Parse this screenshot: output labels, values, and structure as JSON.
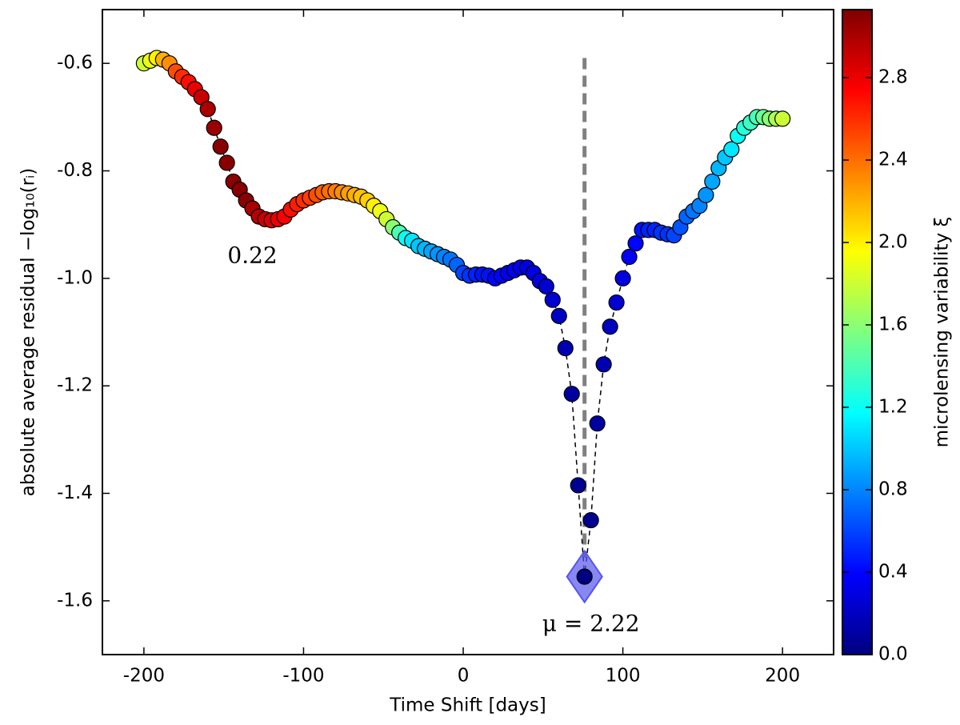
{
  "chart_data": {
    "type": "scatter",
    "xlabel": "Time Shift [days]",
    "ylabel": "absolute average residual −log₁₀(rᵢ)",
    "colorbar_label": "microlensing variability ξ",
    "colormap": "jet",
    "annotations": [
      {
        "text": "0.22",
        "x": -132,
        "y": -0.96
      },
      {
        "text": "μ = 2.22",
        "x": 80,
        "y": -1.645
      }
    ],
    "vline": {
      "x": 76,
      "ymin": -1.52,
      "ymax": -0.59,
      "color": "#808080"
    },
    "highlight": {
      "x": 76,
      "y": -1.555,
      "color": "#5555ee"
    },
    "xlim": [
      -226,
      232
    ],
    "ylim": [
      -1.7,
      -0.5
    ],
    "xticks": [
      -200,
      -100,
      0,
      100,
      200
    ],
    "yticks": [
      -0.6,
      -0.8,
      {
        "value": -1.0,
        "label": "-1.0"
      },
      -1.2,
      -1.4,
      -1.6
    ],
    "clim": [
      0,
      3.13
    ],
    "cticks": [
      {
        "value": 0,
        "label": "0.0"
      },
      0.4,
      0.8,
      1.2,
      1.6,
      {
        "value": 2,
        "label": "2.0"
      },
      2.4,
      2.8
    ],
    "x": [
      -200,
      -196,
      -192,
      -188,
      -184,
      -180,
      -176,
      -172,
      -168,
      -164,
      -160,
      -156,
      -152,
      -148,
      -144,
      -140,
      -136,
      -132,
      -128,
      -124,
      -120,
      -116,
      -112,
      -108,
      -104,
      -100,
      -96,
      -92,
      -88,
      -84,
      -80,
      -76,
      -72,
      -68,
      -64,
      -60,
      -56,
      -52,
      -48,
      -44,
      -40,
      -36,
      -32,
      -28,
      -24,
      -20,
      -16,
      -12,
      -8,
      -4,
      0,
      4,
      8,
      12,
      16,
      20,
      24,
      28,
      32,
      36,
      40,
      44,
      48,
      52,
      56,
      60,
      64,
      68,
      72,
      76,
      80,
      84,
      88,
      92,
      96,
      100,
      104,
      108,
      112,
      116,
      120,
      124,
      128,
      132,
      136,
      140,
      144,
      148,
      152,
      156,
      160,
      164,
      168,
      172,
      176,
      180,
      184,
      188,
      192,
      196,
      200
    ],
    "values": [
      -0.6,
      -0.595,
      -0.59,
      -0.593,
      -0.6,
      -0.615,
      -0.625,
      -0.635,
      -0.648,
      -0.663,
      -0.685,
      -0.72,
      -0.755,
      -0.785,
      -0.82,
      -0.835,
      -0.855,
      -0.87,
      -0.885,
      -0.89,
      -0.892,
      -0.89,
      -0.885,
      -0.872,
      -0.862,
      -0.855,
      -0.85,
      -0.845,
      -0.84,
      -0.838,
      -0.838,
      -0.84,
      -0.842,
      -0.845,
      -0.848,
      -0.855,
      -0.865,
      -0.875,
      -0.89,
      -0.905,
      -0.915,
      -0.925,
      -0.93,
      -0.94,
      -0.945,
      -0.95,
      -0.955,
      -0.96,
      -0.965,
      -0.975,
      -0.99,
      -0.995,
      -0.993,
      -0.993,
      -0.995,
      -1.0,
      -0.995,
      -0.99,
      -0.985,
      -0.98,
      -0.98,
      -0.99,
      -1.005,
      -1.015,
      -1.04,
      -1.07,
      -1.13,
      -1.215,
      -1.385,
      -1.555,
      -1.45,
      -1.27,
      -1.16,
      -1.09,
      -1.045,
      -1.0,
      -0.96,
      -0.935,
      -0.91,
      -0.91,
      -0.91,
      -0.915,
      -0.918,
      -0.92,
      -0.905,
      -0.885,
      -0.875,
      -0.865,
      -0.845,
      -0.82,
      -0.795,
      -0.775,
      -0.76,
      -0.735,
      -0.72,
      -0.71,
      -0.7,
      -0.7,
      -0.703,
      -0.703,
      -0.703
    ],
    "c": [
      1.8,
      1.9,
      2.0,
      2.2,
      2.3,
      2.5,
      2.6,
      2.7,
      2.8,
      2.9,
      3.0,
      3.05,
      3.1,
      3.1,
      3.1,
      3.1,
      3.1,
      3.0,
      2.95,
      2.9,
      2.85,
      2.8,
      2.75,
      2.7,
      2.65,
      2.6,
      2.55,
      2.5,
      2.45,
      2.4,
      2.35,
      2.3,
      2.25,
      2.2,
      2.15,
      2.1,
      2.0,
      1.9,
      1.8,
      1.6,
      1.4,
      1.2,
      1.1,
      1.0,
      0.95,
      0.9,
      0.85,
      0.8,
      0.75,
      0.7,
      0.6,
      0.55,
      0.5,
      0.45,
      0.45,
      0.4,
      0.4,
      0.35,
      0.35,
      0.35,
      0.3,
      0.3,
      0.3,
      0.25,
      0.25,
      0.2,
      0.15,
      0.1,
      0.05,
      0.0,
      0.05,
      0.1,
      0.15,
      0.2,
      0.25,
      0.3,
      0.35,
      0.4,
      0.45,
      0.5,
      0.5,
      0.55,
      0.55,
      0.6,
      0.65,
      0.7,
      0.75,
      0.8,
      0.85,
      0.9,
      0.95,
      1.0,
      1.1,
      1.2,
      1.3,
      1.35,
      1.4,
      1.5,
      1.6,
      1.7,
      1.8
    ]
  }
}
